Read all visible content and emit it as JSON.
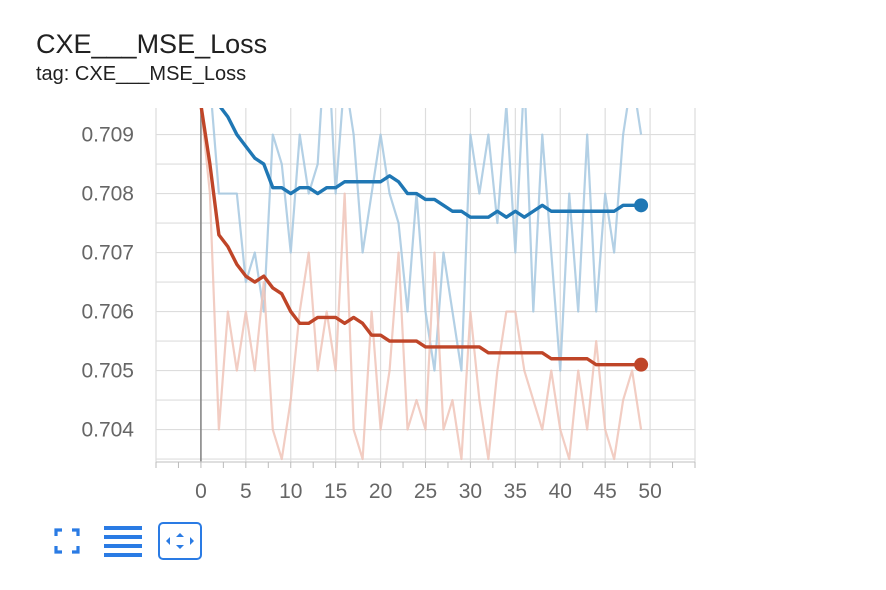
{
  "card": {
    "title": "CXE___MSE_Loss",
    "subtitle": "tag: CXE___MSE_Loss"
  },
  "toolbar": {
    "buttons": [
      {
        "icon": "fullscreen-icon"
      },
      {
        "icon": "data-table-icon"
      },
      {
        "icon": "fit-domain-icon"
      }
    ]
  },
  "chart_data": {
    "type": "line",
    "title": "",
    "xlabel": "",
    "ylabel": "",
    "xlim": [
      -5,
      55
    ],
    "ylim": [
      0.70345,
      0.70945
    ],
    "x_ticks": [
      0,
      5,
      10,
      15,
      20,
      25,
      30,
      35,
      40,
      45,
      50
    ],
    "y_ticks": [
      0.704,
      0.705,
      0.706,
      0.707,
      0.708,
      0.709
    ],
    "y_tick_labels": [
      "0.704",
      "0.705",
      "0.706",
      "0.707",
      "0.708",
      "0.709"
    ],
    "grid": true,
    "legend": "none",
    "series": [
      {
        "color": "#1f77b4",
        "raw_color": "#a6c8e0",
        "end_marker": true,
        "smoothed": [
          0.71,
          0.7098,
          0.7095,
          0.7093,
          0.709,
          0.7088,
          0.7086,
          0.7085,
          0.7081,
          0.7081,
          0.708,
          0.7081,
          0.7081,
          0.708,
          0.7081,
          0.7081,
          0.7082,
          0.7082,
          0.7082,
          0.7082,
          0.7082,
          0.7083,
          0.7082,
          0.708,
          0.708,
          0.7079,
          0.7079,
          0.7078,
          0.7077,
          0.7077,
          0.7076,
          0.7076,
          0.7076,
          0.7077,
          0.7076,
          0.7077,
          0.7076,
          0.7077,
          0.7078,
          0.7077,
          0.7077,
          0.7077,
          0.7077,
          0.7077,
          0.7077,
          0.7077,
          0.7077,
          0.7078,
          0.7078,
          0.7078
        ],
        "raw": [
          0.7105,
          0.7099,
          0.708,
          0.708,
          0.708,
          0.7065,
          0.707,
          0.706,
          0.709,
          0.7085,
          0.707,
          0.709,
          0.708,
          0.7085,
          0.711,
          0.708,
          0.71,
          0.709,
          0.707,
          0.708,
          0.709,
          0.708,
          0.7075,
          0.706,
          0.708,
          0.706,
          0.705,
          0.707,
          0.706,
          0.705,
          0.709,
          0.708,
          0.709,
          0.7075,
          0.7095,
          0.707,
          0.71,
          0.706,
          0.709,
          0.707,
          0.705,
          0.708,
          0.706,
          0.709,
          0.706,
          0.708,
          0.707,
          0.709,
          0.71,
          0.709
        ]
      },
      {
        "color": "#bf4528",
        "raw_color": "#f0c4b8",
        "end_marker": true,
        "smoothed": [
          0.7095,
          0.7085,
          0.7073,
          0.7071,
          0.7068,
          0.7066,
          0.7065,
          0.7066,
          0.7064,
          0.7063,
          0.706,
          0.7058,
          0.7058,
          0.7059,
          0.7059,
          0.7059,
          0.7058,
          0.7059,
          0.7058,
          0.7056,
          0.7056,
          0.7055,
          0.7055,
          0.7055,
          0.7055,
          0.7054,
          0.7054,
          0.7054,
          0.7054,
          0.7054,
          0.7054,
          0.7054,
          0.7053,
          0.7053,
          0.7053,
          0.7053,
          0.7053,
          0.7053,
          0.7053,
          0.7052,
          0.7052,
          0.7052,
          0.7052,
          0.7052,
          0.7051,
          0.7051,
          0.7051,
          0.7051,
          0.7051,
          0.7051
        ],
        "raw": [
          0.7095,
          0.708,
          0.704,
          0.706,
          0.705,
          0.706,
          0.705,
          0.7065,
          0.704,
          0.7035,
          0.7045,
          0.706,
          0.707,
          0.705,
          0.706,
          0.705,
          0.708,
          0.704,
          0.7035,
          0.706,
          0.704,
          0.705,
          0.707,
          0.704,
          0.7045,
          0.704,
          0.707,
          0.704,
          0.7045,
          0.7035,
          0.706,
          0.7045,
          0.7035,
          0.705,
          0.706,
          0.706,
          0.705,
          0.7045,
          0.704,
          0.705,
          0.704,
          0.7035,
          0.705,
          0.704,
          0.7055,
          0.704,
          0.7035,
          0.7045,
          0.705,
          0.704
        ]
      }
    ]
  }
}
